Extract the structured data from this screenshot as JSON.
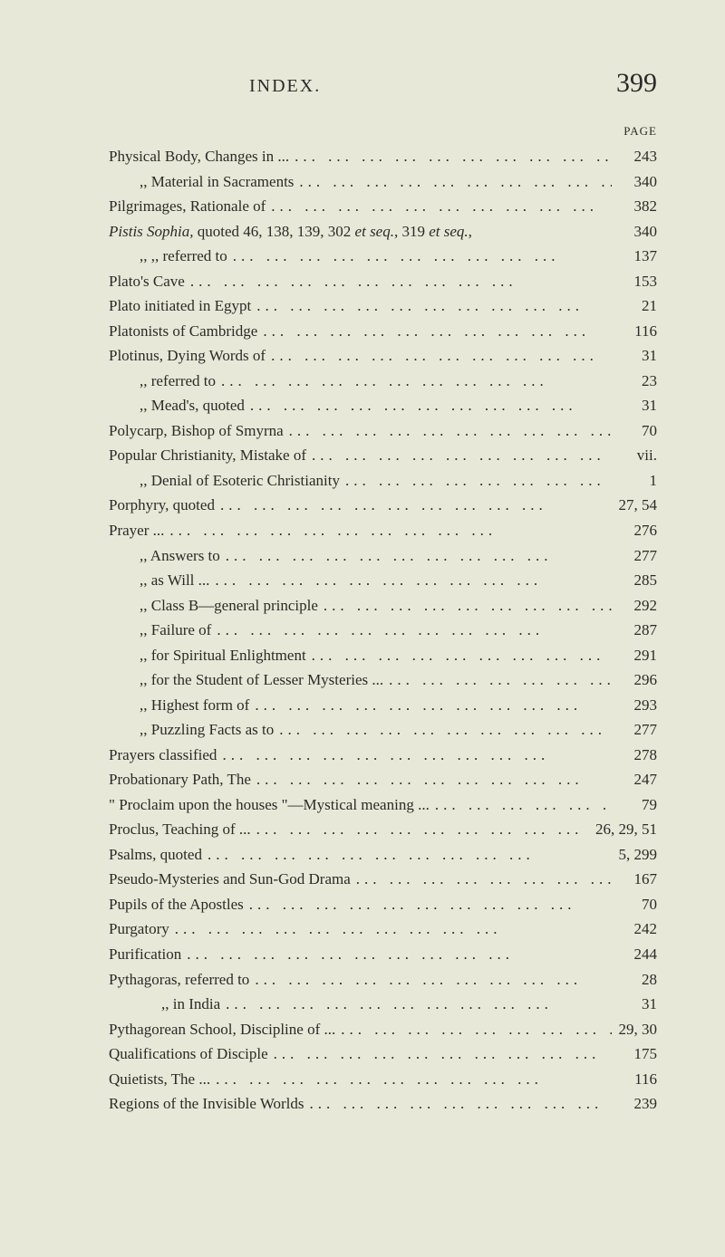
{
  "header": {
    "title": "INDEX.",
    "page_number": "399",
    "page_label": "PAGE"
  },
  "entries": [
    {
      "label": "Physical Body, Changes in ...",
      "page": "243",
      "indent": 0
    },
    {
      "label": ",,     Material in Sacraments",
      "page": "340",
      "indent": 1
    },
    {
      "label": "Pilgrimages, Rationale of",
      "page": "382",
      "indent": 0
    },
    {
      "label_italic_prefix": "Pistis Sophia,",
      "label": " quoted   46, 138, 139, 302 ",
      "label_italic_mid": "et seq.",
      "label_mid": ", 319 ",
      "label_italic_mid2": "et seq.",
      "label_end": ",",
      "page": "340",
      "indent": 0,
      "noleader": true
    },
    {
      "label": ",,        ,,     referred to",
      "page": "137",
      "indent": 1
    },
    {
      "label": "Plato's Cave",
      "page": "153",
      "indent": 0
    },
    {
      "label": "Plato initiated in Egypt",
      "page": "21",
      "indent": 0
    },
    {
      "label": "Platonists of Cambridge",
      "page": "116",
      "indent": 0
    },
    {
      "label": "Plotinus, Dying Words of",
      "page": "31",
      "indent": 0
    },
    {
      "label": ",,    referred to",
      "page": "23",
      "indent": 1
    },
    {
      "label": ",,    Mead's, quoted",
      "page": "31",
      "indent": 1
    },
    {
      "label": "Polycarp, Bishop of Smyrna",
      "page": "70",
      "indent": 0
    },
    {
      "label": "Popular Christianity, Mistake of",
      "page": "vii.",
      "indent": 0
    },
    {
      "label": ",,     Denial of Esoteric Christianity",
      "page": "1",
      "indent": 1
    },
    {
      "label": "Porphyry, quoted",
      "page": "27, 54",
      "indent": 0
    },
    {
      "label": "Prayer ...",
      "page": "276",
      "indent": 0
    },
    {
      "label": ",,   Answers to",
      "page": "277",
      "indent": 1
    },
    {
      "label": ",,   as Will ...",
      "page": "285",
      "indent": 1
    },
    {
      "label": ",,   Class B—general principle",
      "page": "292",
      "indent": 1
    },
    {
      "label": ",,   Failure of",
      "page": "287",
      "indent": 1
    },
    {
      "label": ",,   for Spiritual Enlightment",
      "page": "291",
      "indent": 1
    },
    {
      "label": ",,   for the Student of Lesser Mysteries ...",
      "page": "296",
      "indent": 1
    },
    {
      "label": ",,   Highest form of",
      "page": "293",
      "indent": 1
    },
    {
      "label": ",,   Puzzling Facts as to",
      "page": "277",
      "indent": 1
    },
    {
      "label": "Prayers classified",
      "page": "278",
      "indent": 0
    },
    {
      "label": "Probationary Path, The",
      "page": "247",
      "indent": 0
    },
    {
      "label": "\" Proclaim upon the houses \"—Mystical meaning ...",
      "page": "79",
      "indent": 0
    },
    {
      "label": "Proclus, Teaching of ...",
      "page": "26, 29, 51",
      "indent": 0
    },
    {
      "label": "Psalms, quoted",
      "page": "5, 299",
      "indent": 0
    },
    {
      "label": "Pseudo-Mysteries and Sun-God Drama",
      "page": "167",
      "indent": 0
    },
    {
      "label": "Pupils of the Apostles",
      "page": "70",
      "indent": 0
    },
    {
      "label": "Purgatory",
      "page": "242",
      "indent": 0
    },
    {
      "label": "Purification",
      "page": "244",
      "indent": 0
    },
    {
      "label": "Pythagoras, referred to",
      "page": "28",
      "indent": 0
    },
    {
      "label": ",,       in India",
      "page": "31",
      "indent": 2
    },
    {
      "label": "Pythagorean School, Discipline of ...",
      "page": "29, 30",
      "indent": 0
    },
    {
      "label": "Qualifications of Disciple",
      "page": "175",
      "indent": 0
    },
    {
      "label": "Quietists, The ...",
      "page": "116",
      "indent": 0
    },
    {
      "label": "Regions of the Invisible Worlds",
      "page": "239",
      "indent": 0
    }
  ],
  "leader_text": "..."
}
